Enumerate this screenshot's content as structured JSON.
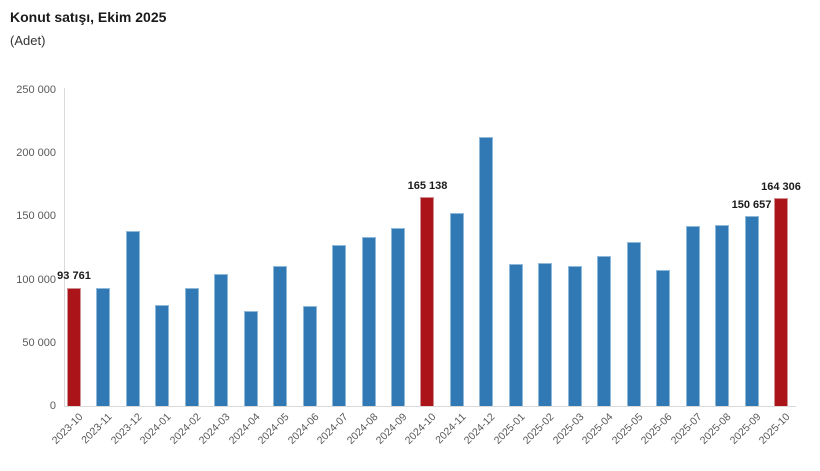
{
  "header": {
    "title": "Konut satışı, Ekim 2025",
    "subtitle": "(Adet)"
  },
  "colors": {
    "bar_default": "#3179b5",
    "bar_highlight": "#ab1418",
    "axis_line": "#d9d9d9",
    "tick_text": "#595959",
    "data_label_text": "#1a1a1a"
  },
  "chart_data": {
    "type": "bar",
    "title": "Konut satışı, Ekim 2025",
    "subtitle": "(Adet)",
    "xlabel": "",
    "ylabel": "(Adet)",
    "ylim": [
      0,
      250000
    ],
    "yticks": [
      0,
      50000,
      100000,
      150000,
      200000,
      250000
    ],
    "ytick_labels": [
      "0",
      "50 000",
      "100 000",
      "150 000",
      "200 000",
      "250 000"
    ],
    "grid": false,
    "legend": false,
    "categories": [
      "2023-10",
      "2023-11",
      "2023-12",
      "2024-01",
      "2024-02",
      "2024-03",
      "2024-04",
      "2024-05",
      "2024-06",
      "2024-07",
      "2024-08",
      "2024-09",
      "2024-10",
      "2024-11",
      "2024-12",
      "2025-01",
      "2025-02",
      "2025-03",
      "2025-04",
      "2025-05",
      "2025-06",
      "2025-07",
      "2025-08",
      "2025-09",
      "2025-10"
    ],
    "values": [
      93761,
      93500,
      138500,
      80000,
      93500,
      104500,
      75500,
      110500,
      79000,
      127000,
      134000,
      140500,
      165138,
      153000,
      212500,
      112200,
      112800,
      110800,
      118400,
      130000,
      107700,
      142800,
      143300,
      150657,
      164306
    ],
    "highlighted_categories": [
      "2023-10",
      "2024-10",
      "2025-10"
    ],
    "data_labels": {
      "2023-10": "93 761",
      "2024-10": "165 138",
      "2025-09": "150 657",
      "2025-10": "164 306"
    }
  }
}
